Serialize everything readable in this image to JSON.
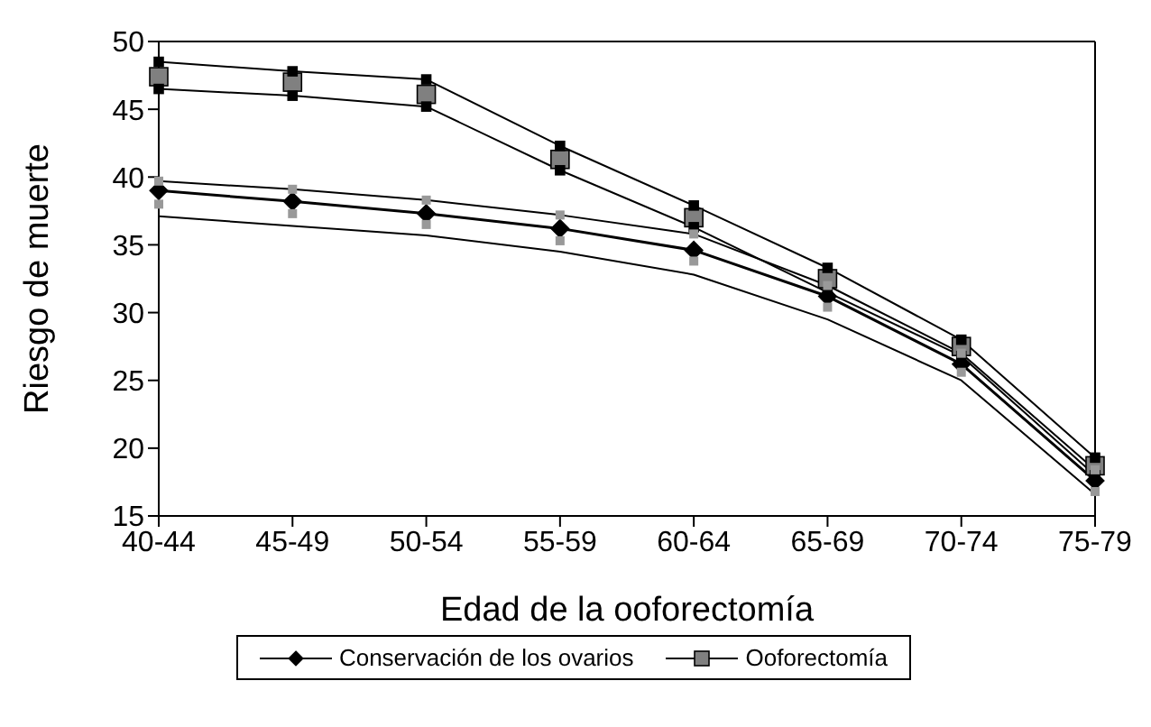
{
  "chart_data": {
    "type": "line",
    "xlabel": "Edad de la ooforectomía",
    "ylabel": "Riesgo de muerte",
    "categories": [
      "40-44",
      "45-49",
      "50-54",
      "55-59",
      "60-64",
      "65-69",
      "70-74",
      "75-79"
    ],
    "ylim": [
      15,
      50
    ],
    "yticks": [
      15,
      20,
      25,
      30,
      35,
      40,
      45,
      50
    ],
    "grid": false,
    "legend": "bottom",
    "series": [
      {
        "name": "Conservación de los ovarios",
        "marker": "diamond",
        "color": "#000000",
        "values": [
          39.0,
          38.2,
          37.3,
          36.2,
          34.6,
          31.2,
          26.2,
          17.6
        ]
      },
      {
        "name": "Ooforectomía",
        "type": "scatter",
        "marker": "square",
        "color": "#808080",
        "values": [
          47.4,
          47.0,
          46.1,
          41.3,
          37.0,
          32.5,
          27.5,
          18.7
        ]
      },
      {
        "marker": "square",
        "color": "#000000",
        "values": [
          48.5,
          47.8,
          47.2,
          42.3,
          37.9,
          33.3,
          28.0,
          19.3
        ]
      },
      {
        "marker": "square",
        "color": "#000000",
        "values": [
          46.5,
          46.0,
          45.2,
          40.5,
          36.3,
          31.5,
          26.8,
          18.0
        ]
      },
      {
        "marker": "square",
        "color": "#999999",
        "values": [
          39.7,
          39.1,
          38.3,
          37.2,
          35.8,
          32.0,
          27.0,
          18.4
        ]
      },
      {
        "marker": "none",
        "color": "#000000",
        "values": [
          37.1,
          36.4,
          35.7,
          34.5,
          32.8,
          29.5,
          25.0,
          16.6
        ]
      },
      {
        "type": "scatter",
        "marker": "square",
        "color": "#999999",
        "values": [
          38.0,
          37.3,
          36.5,
          35.3,
          33.8,
          30.4,
          25.6,
          16.8
        ]
      }
    ]
  }
}
